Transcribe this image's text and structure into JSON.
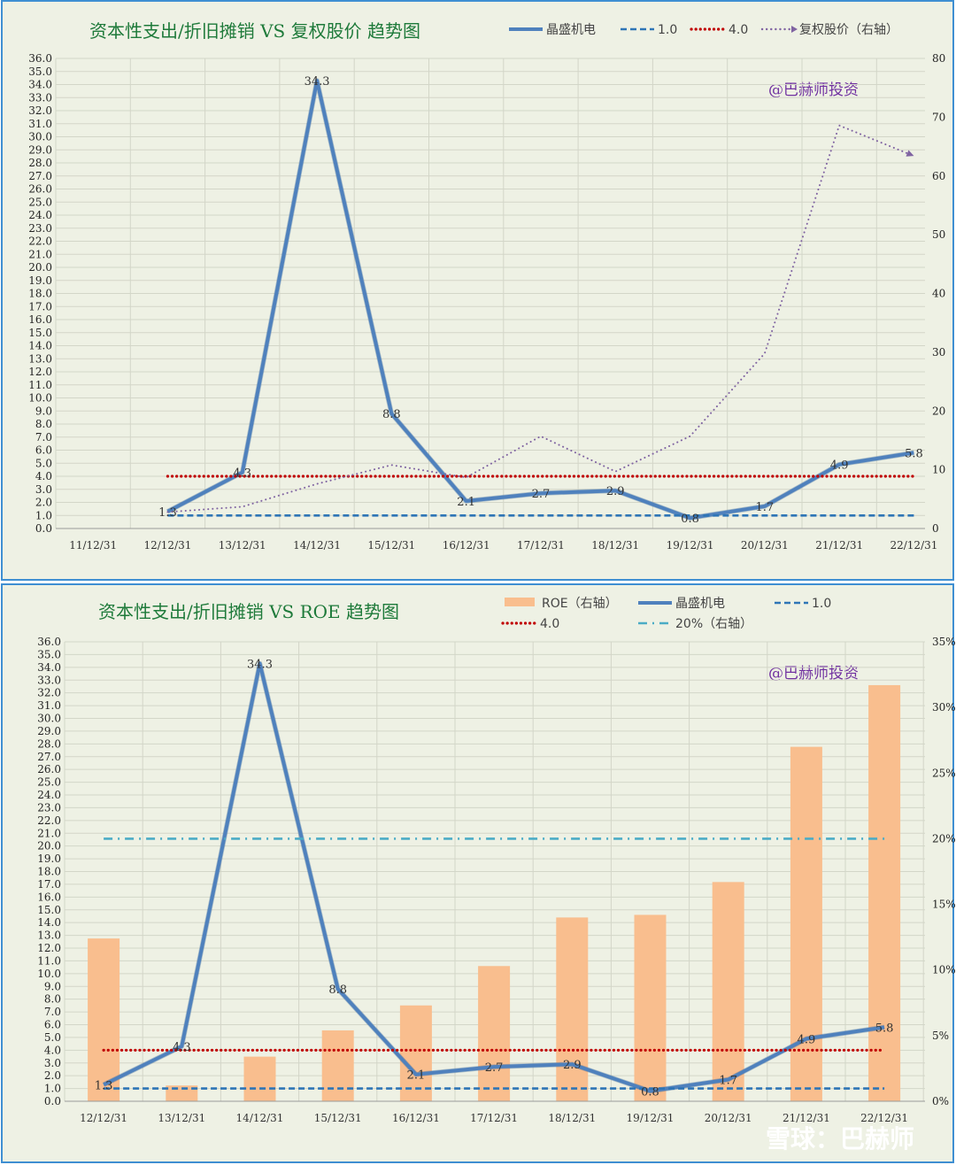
{
  "chart_data": [
    {
      "type": "line",
      "title": "资本性支出/折旧摊销 VS 复权股价 趋势图",
      "watermark": "@巴赫师投资",
      "categories": [
        "11/12/31",
        "12/12/31",
        "13/12/31",
        "14/12/31",
        "15/12/31",
        "16/12/31",
        "17/12/31",
        "18/12/31",
        "19/12/31",
        "20/12/31",
        "21/12/31",
        "22/12/31"
      ],
      "ylim": [
        0,
        36
      ],
      "y_ticks": [
        "0.0",
        "1.0",
        "2.0",
        "3.0",
        "4.0",
        "5.0",
        "6.0",
        "7.0",
        "8.0",
        "9.0",
        "10.0",
        "11.0",
        "12.0",
        "13.0",
        "14.0",
        "15.0",
        "16.0",
        "17.0",
        "18.0",
        "19.0",
        "20.0",
        "21.0",
        "22.0",
        "23.0",
        "24.0",
        "25.0",
        "26.0",
        "27.0",
        "28.0",
        "29.0",
        "30.0",
        "31.0",
        "32.0",
        "33.0",
        "34.0",
        "35.0",
        "36.0"
      ],
      "y2lim": [
        0,
        80
      ],
      "y2_ticks": [
        "0",
        "10",
        "20",
        "30",
        "40",
        "50",
        "60",
        "70",
        "80"
      ],
      "grid": true,
      "legend_position": "top",
      "series": [
        {
          "name": "晶盛机电",
          "axis": "left",
          "color": "#4f81bd",
          "style": "solid",
          "values": [
            null,
            1.3,
            4.3,
            34.3,
            8.8,
            2.1,
            2.7,
            2.9,
            0.8,
            1.7,
            4.9,
            5.8
          ],
          "labels": [
            "",
            "1.3",
            "4.3",
            "34.3",
            "8.8",
            "2.1",
            "2.7",
            "2.9",
            "0.8",
            "1.7",
            "4.9",
            "5.8"
          ]
        },
        {
          "name": "1.0",
          "axis": "left",
          "color": "#2e75b6",
          "style": "dashed",
          "values": [
            null,
            1.0,
            1.0,
            1.0,
            1.0,
            1.0,
            1.0,
            1.0,
            1.0,
            1.0,
            1.0,
            1.0
          ]
        },
        {
          "name": "4.0",
          "axis": "left",
          "color": "#c00000",
          "style": "dotted",
          "values": [
            null,
            4.0,
            4.0,
            4.0,
            4.0,
            4.0,
            4.0,
            4.0,
            4.0,
            4.0,
            4.0,
            4.0
          ]
        },
        {
          "name": "复权股价（右轴）",
          "axis": "right",
          "color": "#8064a2",
          "style": "dotted-arrow",
          "values": [
            null,
            2.8,
            3.7,
            7.6,
            10.8,
            8.7,
            15.7,
            9.7,
            15.7,
            29.8,
            68.6,
            63.4
          ]
        }
      ]
    },
    {
      "type": "bar",
      "title": "资本性支出/折旧摊销 VS ROE 趋势图",
      "watermark": "@巴赫师投资",
      "categories": [
        "12/12/31",
        "13/12/31",
        "14/12/31",
        "15/12/31",
        "16/12/31",
        "17/12/31",
        "18/12/31",
        "19/12/31",
        "20/12/31",
        "21/12/31",
        "22/12/31"
      ],
      "ylim": [
        0,
        36
      ],
      "y_ticks": [
        "0.0",
        "1.0",
        "2.0",
        "3.0",
        "4.0",
        "5.0",
        "6.0",
        "7.0",
        "8.0",
        "9.0",
        "10.0",
        "11.0",
        "12.0",
        "13.0",
        "14.0",
        "15.0",
        "16.0",
        "17.0",
        "18.0",
        "19.0",
        "20.0",
        "21.0",
        "22.0",
        "23.0",
        "24.0",
        "25.0",
        "26.0",
        "27.0",
        "28.0",
        "29.0",
        "30.0",
        "31.0",
        "32.0",
        "33.0",
        "34.0",
        "35.0",
        "36.0"
      ],
      "y2lim": [
        0,
        35
      ],
      "y2_ticks": [
        "0%",
        "5%",
        "10%",
        "15%",
        "20%",
        "25%",
        "30%",
        "35%"
      ],
      "grid": true,
      "legend_position": "top",
      "series": [
        {
          "name": "ROE（右轴）",
          "axis": "right",
          "kind": "bar",
          "color": "#f9be8e",
          "values": [
            12.4,
            1.2,
            3.4,
            5.4,
            7.3,
            10.3,
            14.0,
            14.2,
            16.7,
            27.0,
            31.7
          ]
        },
        {
          "name": "晶盛机电",
          "axis": "left",
          "kind": "line",
          "color": "#4f81bd",
          "style": "solid",
          "values": [
            1.3,
            4.3,
            34.3,
            8.8,
            2.1,
            2.7,
            2.9,
            0.8,
            1.7,
            4.9,
            5.8
          ],
          "labels": [
            "1.3",
            "4.3",
            "34.3",
            "8.8",
            "2.1",
            "2.7",
            "2.9",
            "0.8",
            "1.7",
            "4.9",
            "5.8"
          ]
        },
        {
          "name": "1.0",
          "axis": "left",
          "kind": "line",
          "color": "#2e75b6",
          "style": "dashed",
          "values": [
            1.0,
            1.0,
            1.0,
            1.0,
            1.0,
            1.0,
            1.0,
            1.0,
            1.0,
            1.0,
            1.0
          ]
        },
        {
          "name": "4.0",
          "axis": "left",
          "kind": "line",
          "color": "#c00000",
          "style": "dotted",
          "values": [
            4.0,
            4.0,
            4.0,
            4.0,
            4.0,
            4.0,
            4.0,
            4.0,
            4.0,
            4.0,
            4.0
          ]
        },
        {
          "name": "20%（右轴）",
          "axis": "right",
          "kind": "line",
          "color": "#4bacc6",
          "style": "dashdot",
          "values": [
            20,
            20,
            20,
            20,
            20,
            20,
            20,
            20,
            20,
            20,
            20
          ]
        }
      ]
    }
  ],
  "footer_watermark": "雪球：巴赫师"
}
